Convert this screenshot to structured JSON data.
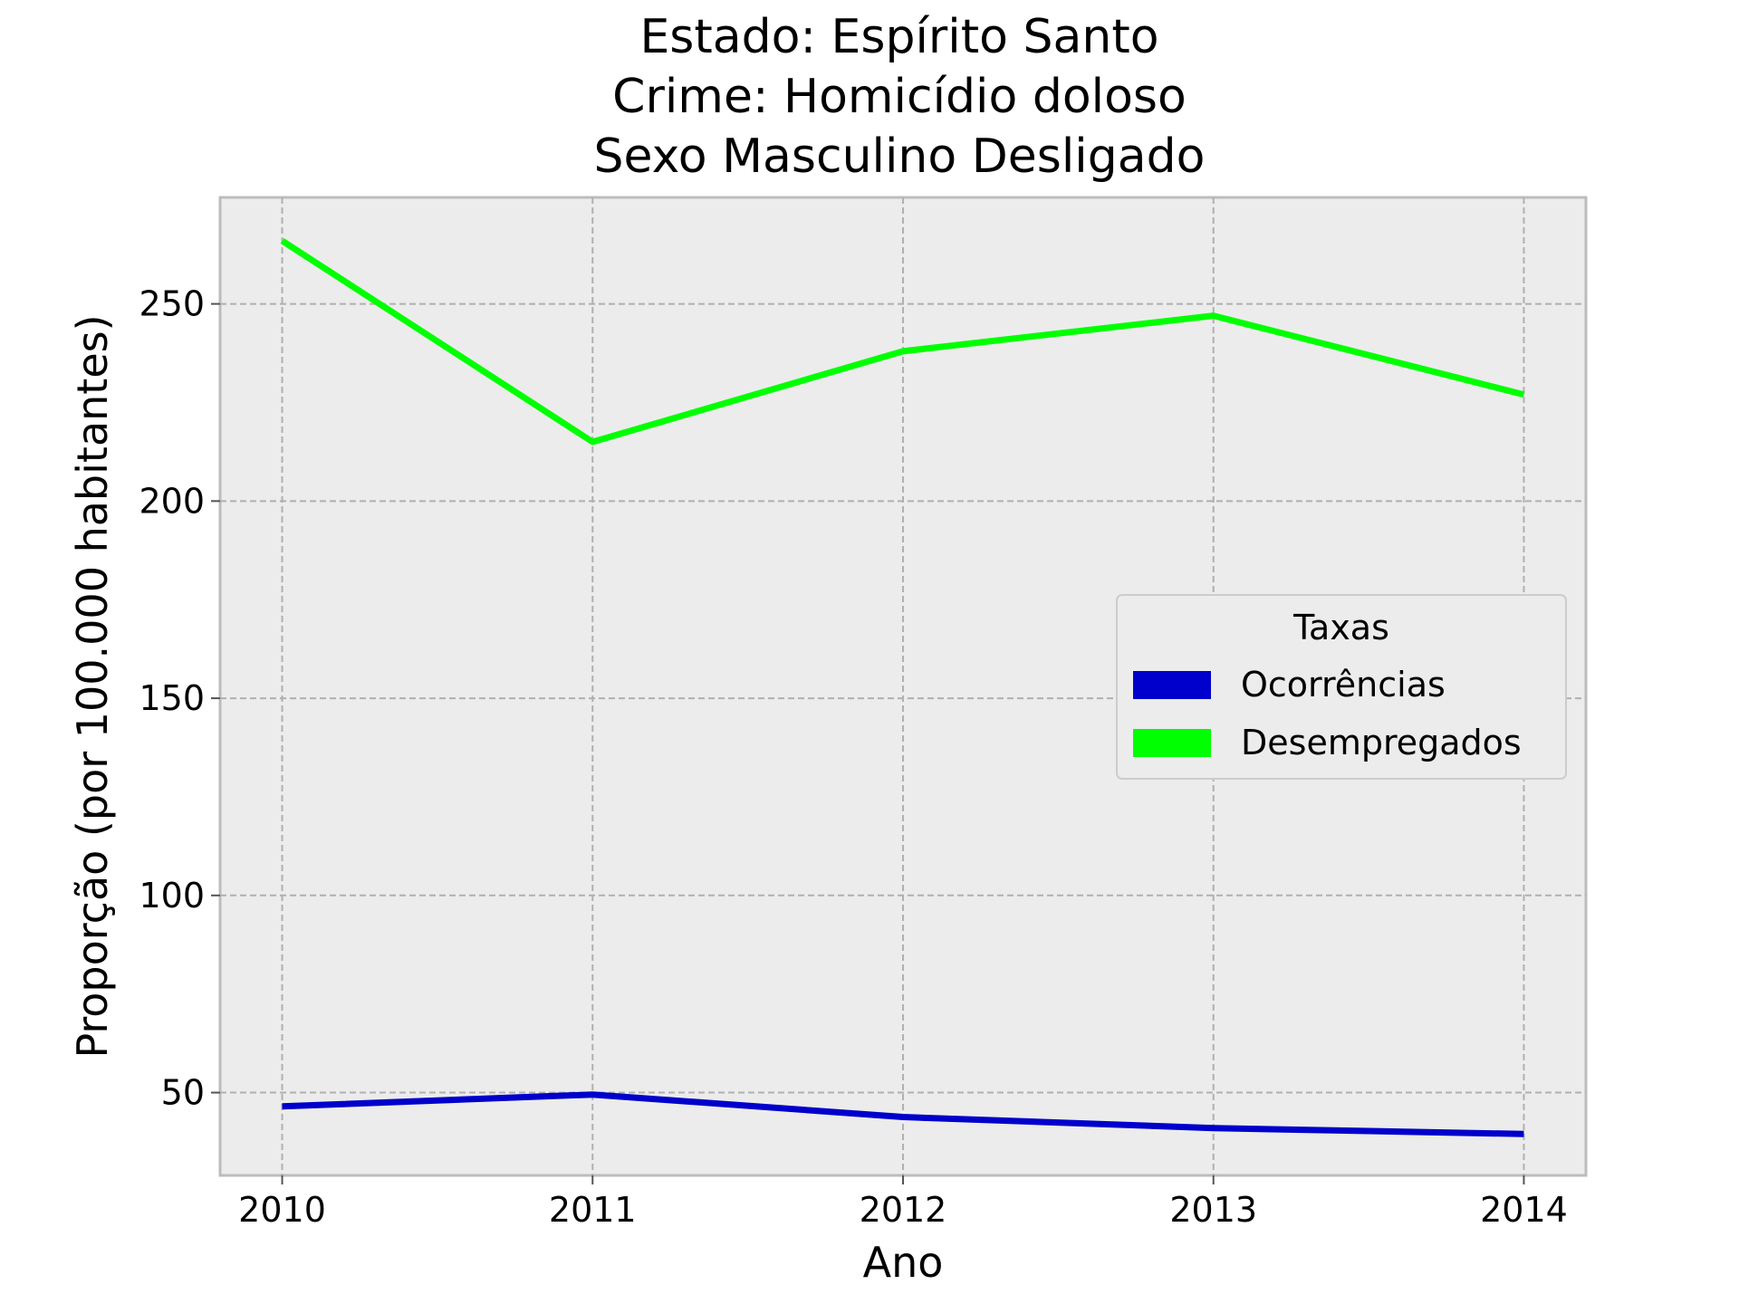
{
  "chart_data": {
    "type": "line",
    "title": [
      "Estado: Espírito Santo",
      "Crime: Homicídio doloso",
      "Sexo  Masculino   Desligado"
    ],
    "xlabel": "Ano",
    "ylabel": "Proporção (por 100.000 habitantes)",
    "x": [
      2010,
      2011,
      2012,
      2013,
      2014
    ],
    "x_tick_labels": [
      "2010",
      "2011",
      "2012",
      "2013",
      "2014"
    ],
    "xlim": [
      2009.8,
      2014.2
    ],
    "y_ticks": [
      50,
      100,
      150,
      200,
      250
    ],
    "y_tick_labels": [
      "50",
      "100",
      "150",
      "200",
      "250"
    ],
    "ylim": [
      29,
      277
    ],
    "grid": true,
    "legend": {
      "title": "Taxas",
      "placement": "center-right"
    },
    "series": [
      {
        "name": "Ocorrências",
        "color": "#0000cc",
        "values": [
          46.5,
          49.5,
          43.8,
          41.0,
          39.5
        ]
      },
      {
        "name": "Desempregados",
        "color": "#00ff00",
        "values": [
          266.0,
          215.0,
          238.0,
          247.0,
          227.0
        ]
      }
    ]
  }
}
